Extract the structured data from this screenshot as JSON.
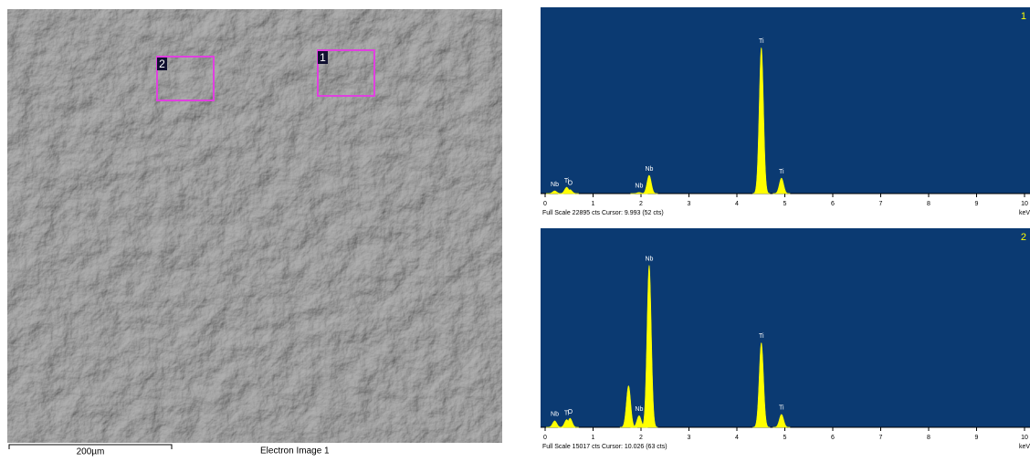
{
  "image": {
    "caption": "Electron Image 1",
    "scale_bar": "200µm",
    "regions": [
      "2",
      "1"
    ]
  },
  "chart_data": [
    {
      "type": "spectrum",
      "panel_label": "1",
      "background": "#0b3a72",
      "color": "#ffff00",
      "xlim": [
        0,
        10
      ],
      "xticks": [
        0,
        1,
        2,
        3,
        4,
        5,
        6,
        7,
        8,
        9,
        10
      ],
      "x_unit": "keV",
      "ylim": [
        0,
        22895
      ],
      "footer": "Full Scale 22895 cts Cursor: 9.993  (52 cts)",
      "peaks": {
        "energy": [
          0.2,
          0.45,
          0.52,
          1.96,
          2.17,
          4.51,
          4.93
        ],
        "counts": [
          350,
          800,
          500,
          150,
          2300,
          18300,
          1950
        ],
        "labels": [
          "Nb",
          "Ti",
          "O",
          "Nb",
          "Nb",
          "Ti",
          "Ti"
        ]
      }
    },
    {
      "type": "spectrum",
      "panel_label": "2",
      "background": "#0b3a72",
      "color": "#ffff00",
      "xlim": [
        0,
        10
      ],
      "xticks": [
        0,
        1,
        2,
        3,
        4,
        5,
        6,
        7,
        8,
        9,
        10
      ],
      "x_unit": "keV",
      "ylim": [
        0,
        15017
      ],
      "footer": "Full Scale 15017 cts Cursor: 10.026  (63 cts)",
      "peaks": {
        "energy": [
          0.2,
          0.45,
          0.52,
          1.74,
          1.96,
          2.17,
          4.51,
          4.93
        ],
        "counts": [
          500,
          600,
          700,
          3200,
          900,
          12450,
          6500,
          1000
        ],
        "labels": [
          "Nb",
          "Ti",
          "O",
          null,
          "Nb",
          "Nb",
          "Ti",
          "Ti"
        ]
      }
    }
  ]
}
